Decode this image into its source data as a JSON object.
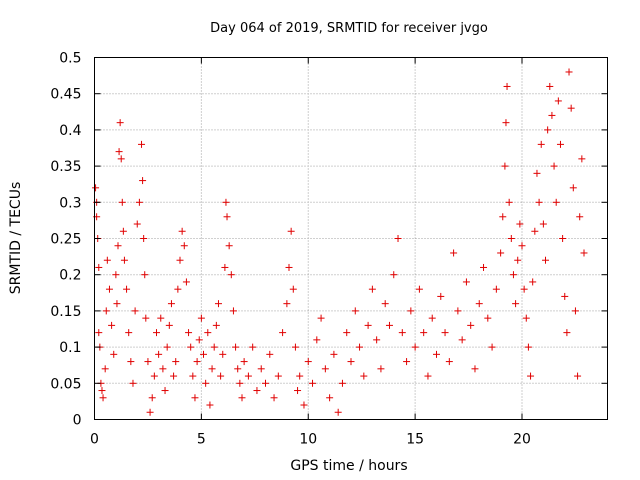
{
  "chart_data": {
    "type": "scatter",
    "title": "Day 064 of 2019, SRMTID for receiver jvgo",
    "xlabel": "GPS time / hours",
    "ylabel": "SRMTID / TECUs",
    "xlim": [
      0,
      24
    ],
    "ylim": [
      0,
      0.5
    ],
    "grid": true,
    "marker": "+",
    "marker_color": "#e00000",
    "x_ticks": [
      0,
      5,
      10,
      15,
      20
    ],
    "x_tick_labels": [
      "0",
      "5",
      "10",
      "15",
      "20"
    ],
    "y_ticks": [
      0,
      0.05,
      0.1,
      0.15,
      0.2,
      0.25,
      0.3,
      0.35,
      0.4,
      0.45,
      0.5
    ],
    "y_tick_labels": [
      "0",
      "0.05",
      "0.1",
      "0.15",
      "0.2",
      "0.25",
      "0.3",
      "0.35",
      "0.4",
      "0.45",
      "0.5"
    ],
    "series": [
      {
        "name": "SRMTID",
        "points": [
          [
            0.05,
            0.32
          ],
          [
            0.1,
            0.3
          ],
          [
            0.1,
            0.28
          ],
          [
            0.15,
            0.25
          ],
          [
            0.2,
            0.21
          ],
          [
            0.2,
            0.12
          ],
          [
            0.25,
            0.1
          ],
          [
            0.3,
            0.05
          ],
          [
            0.35,
            0.04
          ],
          [
            0.4,
            0.03
          ],
          [
            0.5,
            0.07
          ],
          [
            0.55,
            0.15
          ],
          [
            0.6,
            0.22
          ],
          [
            0.7,
            0.18
          ],
          [
            0.8,
            0.13
          ],
          [
            0.9,
            0.09
          ],
          [
            1.0,
            0.2
          ],
          [
            1.05,
            0.16
          ],
          [
            1.1,
            0.24
          ],
          [
            1.15,
            0.37
          ],
          [
            1.2,
            0.41
          ],
          [
            1.25,
            0.36
          ],
          [
            1.3,
            0.3
          ],
          [
            1.35,
            0.26
          ],
          [
            1.4,
            0.22
          ],
          [
            1.5,
            0.18
          ],
          [
            1.6,
            0.12
          ],
          [
            1.7,
            0.08
          ],
          [
            1.8,
            0.05
          ],
          [
            1.9,
            0.15
          ],
          [
            2.0,
            0.27
          ],
          [
            2.1,
            0.3
          ],
          [
            2.2,
            0.38
          ],
          [
            2.25,
            0.33
          ],
          [
            2.3,
            0.25
          ],
          [
            2.35,
            0.2
          ],
          [
            2.4,
            0.14
          ],
          [
            2.5,
            0.08
          ],
          [
            2.6,
            0.01
          ],
          [
            2.7,
            0.03
          ],
          [
            2.8,
            0.06
          ],
          [
            2.9,
            0.12
          ],
          [
            3.0,
            0.09
          ],
          [
            3.1,
            0.14
          ],
          [
            3.2,
            0.07
          ],
          [
            3.3,
            0.04
          ],
          [
            3.4,
            0.1
          ],
          [
            3.5,
            0.13
          ],
          [
            3.6,
            0.16
          ],
          [
            3.7,
            0.06
          ],
          [
            3.8,
            0.08
          ],
          [
            3.9,
            0.18
          ],
          [
            4.0,
            0.22
          ],
          [
            4.1,
            0.26
          ],
          [
            4.2,
            0.24
          ],
          [
            4.3,
            0.19
          ],
          [
            4.4,
            0.12
          ],
          [
            4.5,
            0.1
          ],
          [
            4.6,
            0.06
          ],
          [
            4.7,
            0.03
          ],
          [
            4.8,
            0.08
          ],
          [
            4.9,
            0.11
          ],
          [
            5.0,
            0.14
          ],
          [
            5.1,
            0.09
          ],
          [
            5.2,
            0.05
          ],
          [
            5.3,
            0.12
          ],
          [
            5.4,
            0.02
          ],
          [
            5.5,
            0.07
          ],
          [
            5.6,
            0.1
          ],
          [
            5.7,
            0.13
          ],
          [
            5.8,
            0.16
          ],
          [
            5.9,
            0.06
          ],
          [
            6.0,
            0.09
          ],
          [
            6.1,
            0.21
          ],
          [
            6.15,
            0.3
          ],
          [
            6.2,
            0.28
          ],
          [
            6.3,
            0.24
          ],
          [
            6.4,
            0.2
          ],
          [
            6.5,
            0.15
          ],
          [
            6.6,
            0.1
          ],
          [
            6.7,
            0.07
          ],
          [
            6.8,
            0.05
          ],
          [
            6.9,
            0.03
          ],
          [
            7.0,
            0.08
          ],
          [
            7.2,
            0.06
          ],
          [
            7.4,
            0.1
          ],
          [
            7.6,
            0.04
          ],
          [
            7.8,
            0.07
          ],
          [
            8.0,
            0.05
          ],
          [
            8.2,
            0.09
          ],
          [
            8.4,
            0.03
          ],
          [
            8.6,
            0.06
          ],
          [
            8.8,
            0.12
          ],
          [
            9.0,
            0.16
          ],
          [
            9.1,
            0.21
          ],
          [
            9.2,
            0.26
          ],
          [
            9.3,
            0.18
          ],
          [
            9.4,
            0.1
          ],
          [
            9.5,
            0.04
          ],
          [
            9.6,
            0.06
          ],
          [
            9.8,
            0.02
          ],
          [
            10.0,
            0.08
          ],
          [
            10.2,
            0.05
          ],
          [
            10.4,
            0.11
          ],
          [
            10.6,
            0.14
          ],
          [
            10.8,
            0.07
          ],
          [
            11.0,
            0.03
          ],
          [
            11.2,
            0.09
          ],
          [
            11.4,
            0.01
          ],
          [
            11.6,
            0.05
          ],
          [
            11.8,
            0.12
          ],
          [
            12.0,
            0.08
          ],
          [
            12.2,
            0.15
          ],
          [
            12.4,
            0.1
          ],
          [
            12.6,
            0.06
          ],
          [
            12.8,
            0.13
          ],
          [
            13.0,
            0.18
          ],
          [
            13.2,
            0.11
          ],
          [
            13.4,
            0.07
          ],
          [
            13.6,
            0.16
          ],
          [
            13.8,
            0.13
          ],
          [
            14.0,
            0.2
          ],
          [
            14.2,
            0.25
          ],
          [
            14.4,
            0.12
          ],
          [
            14.6,
            0.08
          ],
          [
            14.8,
            0.15
          ],
          [
            15.0,
            0.1
          ],
          [
            15.2,
            0.18
          ],
          [
            15.4,
            0.12
          ],
          [
            15.6,
            0.06
          ],
          [
            15.8,
            0.14
          ],
          [
            16.0,
            0.09
          ],
          [
            16.2,
            0.17
          ],
          [
            16.4,
            0.12
          ],
          [
            16.6,
            0.08
          ],
          [
            16.8,
            0.23
          ],
          [
            17.0,
            0.15
          ],
          [
            17.2,
            0.11
          ],
          [
            17.4,
            0.19
          ],
          [
            17.6,
            0.13
          ],
          [
            17.8,
            0.07
          ],
          [
            18.0,
            0.16
          ],
          [
            18.2,
            0.21
          ],
          [
            18.4,
            0.14
          ],
          [
            18.6,
            0.1
          ],
          [
            18.8,
            0.18
          ],
          [
            19.0,
            0.23
          ],
          [
            19.1,
            0.28
          ],
          [
            19.2,
            0.35
          ],
          [
            19.25,
            0.41
          ],
          [
            19.3,
            0.46
          ],
          [
            19.4,
            0.3
          ],
          [
            19.5,
            0.25
          ],
          [
            19.6,
            0.2
          ],
          [
            19.7,
            0.16
          ],
          [
            19.8,
            0.22
          ],
          [
            19.9,
            0.27
          ],
          [
            20.0,
            0.24
          ],
          [
            20.1,
            0.18
          ],
          [
            20.2,
            0.14
          ],
          [
            20.3,
            0.1
          ],
          [
            20.4,
            0.06
          ],
          [
            20.5,
            0.19
          ],
          [
            20.6,
            0.26
          ],
          [
            20.7,
            0.34
          ],
          [
            20.8,
            0.3
          ],
          [
            20.9,
            0.38
          ],
          [
            21.0,
            0.27
          ],
          [
            21.1,
            0.22
          ],
          [
            21.2,
            0.4
          ],
          [
            21.3,
            0.46
          ],
          [
            21.4,
            0.42
          ],
          [
            21.5,
            0.35
          ],
          [
            21.6,
            0.3
          ],
          [
            21.7,
            0.44
          ],
          [
            21.8,
            0.38
          ],
          [
            21.9,
            0.25
          ],
          [
            22.0,
            0.17
          ],
          [
            22.1,
            0.12
          ],
          [
            22.2,
            0.48
          ],
          [
            22.3,
            0.43
          ],
          [
            22.4,
            0.32
          ],
          [
            22.5,
            0.15
          ],
          [
            22.6,
            0.06
          ],
          [
            22.7,
            0.28
          ],
          [
            22.8,
            0.36
          ],
          [
            22.9,
            0.23
          ]
        ]
      }
    ]
  }
}
